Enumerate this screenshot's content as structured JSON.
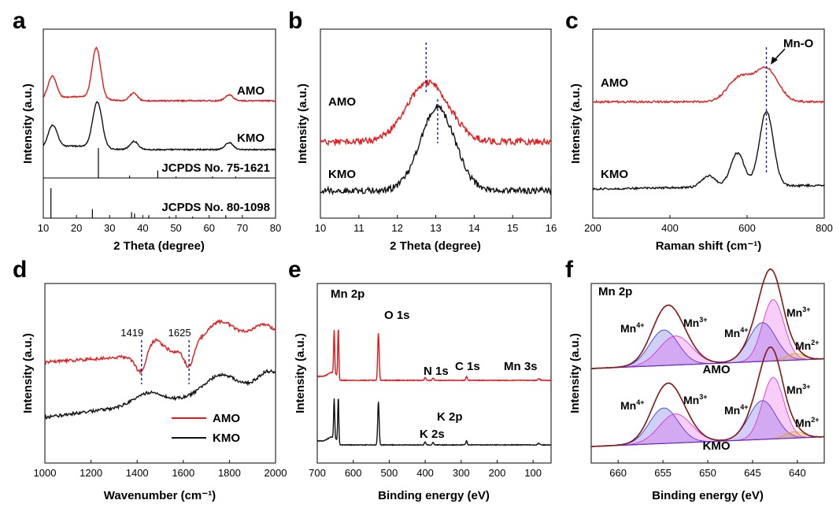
{
  "colors": {
    "amo": "#e31a1c",
    "kmo": "#111111",
    "guide": "#1a1aa8",
    "mn4": "#2b2bd6",
    "mn3": "#e020e0",
    "mn2": "#e8a000",
    "envelope": "#8b1a1a"
  },
  "chart_data": [
    {
      "panel": "a",
      "type": "line",
      "xlabel": "2 Theta (degree)",
      "ylabel": "Intensity (a.u.)",
      "xlim": [
        10,
        80
      ],
      "xticks": [
        "10",
        "20",
        "30",
        "40",
        "50",
        "60",
        "70",
        "80"
      ],
      "series": [
        {
          "name": "AMO",
          "peaks": [
            [
              12.7,
              0.45
            ],
            [
              26.0,
              1.0
            ],
            [
              37.2,
              0.15
            ],
            [
              66.0,
              0.12
            ]
          ],
          "width": 1.3
        },
        {
          "name": "KMO",
          "peaks": [
            [
              12.8,
              0.5
            ],
            [
              26.3,
              1.0
            ],
            [
              37.4,
              0.18
            ],
            [
              66.0,
              0.15
            ]
          ],
          "width": 1.4
        }
      ],
      "references": [
        {
          "label": "JCPDS No. 75-1621",
          "lines": [
            [
              26.6,
              1.0
            ],
            [
              36.0,
              0.08
            ],
            [
              44.5,
              0.25
            ],
            [
              50.0,
              0.05
            ],
            [
              61.0,
              0.05
            ],
            [
              68.0,
              0.05
            ]
          ]
        },
        {
          "label": "JCPDS No. 80-1098",
          "lines": [
            [
              12.3,
              1.0
            ],
            [
              24.8,
              0.3
            ],
            [
              36.6,
              0.2
            ],
            [
              37.5,
              0.15
            ],
            [
              41.8,
              0.1
            ],
            [
              48.0,
              0.06
            ],
            [
              55.0,
              0.05
            ],
            [
              65.0,
              0.1
            ]
          ]
        }
      ]
    },
    {
      "panel": "b",
      "type": "line",
      "xlabel": "2 Theta (degree)",
      "ylabel": "Intensity (a.u.)",
      "xlim": [
        10,
        16
      ],
      "xticks": [
        "10",
        "11",
        "12",
        "13",
        "14",
        "15",
        "16"
      ],
      "series": [
        {
          "name": "AMO",
          "peaks": [
            [
              12.8,
              1.0
            ]
          ],
          "width": 0.55,
          "marker_x": 12.75
        },
        {
          "name": "KMO",
          "peaks": [
            [
              13.05,
              1.0
            ]
          ],
          "width": 0.45,
          "marker_x": 13.05
        }
      ]
    },
    {
      "panel": "c",
      "type": "line",
      "xlabel": "Raman shift (cm⁻¹)",
      "ylabel": "Intensity (a.u.)",
      "xlim": [
        200,
        800
      ],
      "xticks": [
        "200",
        "400",
        "600",
        "800"
      ],
      "annotation": "Mn-O",
      "marker_x": 650,
      "series": [
        {
          "name": "AMO",
          "peaks": [
            [
              580,
              0.55
            ],
            [
              650,
              0.75
            ]
          ],
          "width": 30
        },
        {
          "name": "KMO",
          "peaks": [
            [
              500,
              0.15
            ],
            [
              575,
              0.45
            ],
            [
              650,
              1.0
            ]
          ],
          "width": 18
        }
      ]
    },
    {
      "panel": "d",
      "type": "line",
      "xlabel": "Wavenumber (cm⁻¹)",
      "ylabel": "Intensity (a.u.)",
      "xlim": [
        1000,
        2000
      ],
      "xticks": [
        "1000",
        "1200",
        "1400",
        "1600",
        "1800",
        "2000"
      ],
      "markers": [
        {
          "x": 1419,
          "label": "1419"
        },
        {
          "x": 1625,
          "label": "1625"
        }
      ],
      "legend": [
        "AMO",
        "KMO"
      ],
      "series": [
        {
          "name": "AMO"
        },
        {
          "name": "KMO"
        }
      ]
    },
    {
      "panel": "e",
      "type": "line",
      "xlabel": "Binding energy (eV)",
      "ylabel": "Intensity (a.u.)",
      "xlim": [
        700,
        50
      ],
      "xticks": [
        "700",
        "600",
        "500",
        "400",
        "300",
        "200",
        "100"
      ],
      "labels": [
        {
          "text": "Mn 2p",
          "x": 645
        },
        {
          "text": "O 1s",
          "x": 530
        },
        {
          "text": "N 1s",
          "x": 400
        },
        {
          "text": "C 1s",
          "x": 285
        },
        {
          "text": "Mn 3s",
          "x": 84
        },
        {
          "text": "K 2s",
          "x": 378
        },
        {
          "text": "K 2p",
          "x": 294
        }
      ],
      "series": [
        {
          "name": "AMO"
        },
        {
          "name": "KMO"
        }
      ]
    },
    {
      "panel": "f",
      "type": "line",
      "title": "Mn 2p",
      "xlabel": "Binding energy (eV)",
      "ylabel": "Intensity (a.u.)",
      "xlim": [
        663,
        637
      ],
      "xticks": [
        "660",
        "655",
        "650",
        "645",
        "640"
      ],
      "components": [
        {
          "label": "Mn",
          "sup": "4+",
          "x": 654.9,
          "color": "mn4"
        },
        {
          "label": "Mn",
          "sup": "3+",
          "x": 653.6,
          "color": "mn3"
        },
        {
          "label": "Mn",
          "sup": "4+",
          "x": 643.9,
          "color": "mn4"
        },
        {
          "label": "Mn",
          "sup": "3+",
          "x": 642.7,
          "color": "mn3"
        },
        {
          "label": "Mn",
          "sup": "2+",
          "x": 640.5,
          "color": "mn2"
        }
      ],
      "series": [
        {
          "name": "AMO"
        },
        {
          "name": "KMO"
        }
      ]
    }
  ],
  "panel_labels": [
    "a",
    "b",
    "c",
    "d",
    "e",
    "f"
  ]
}
